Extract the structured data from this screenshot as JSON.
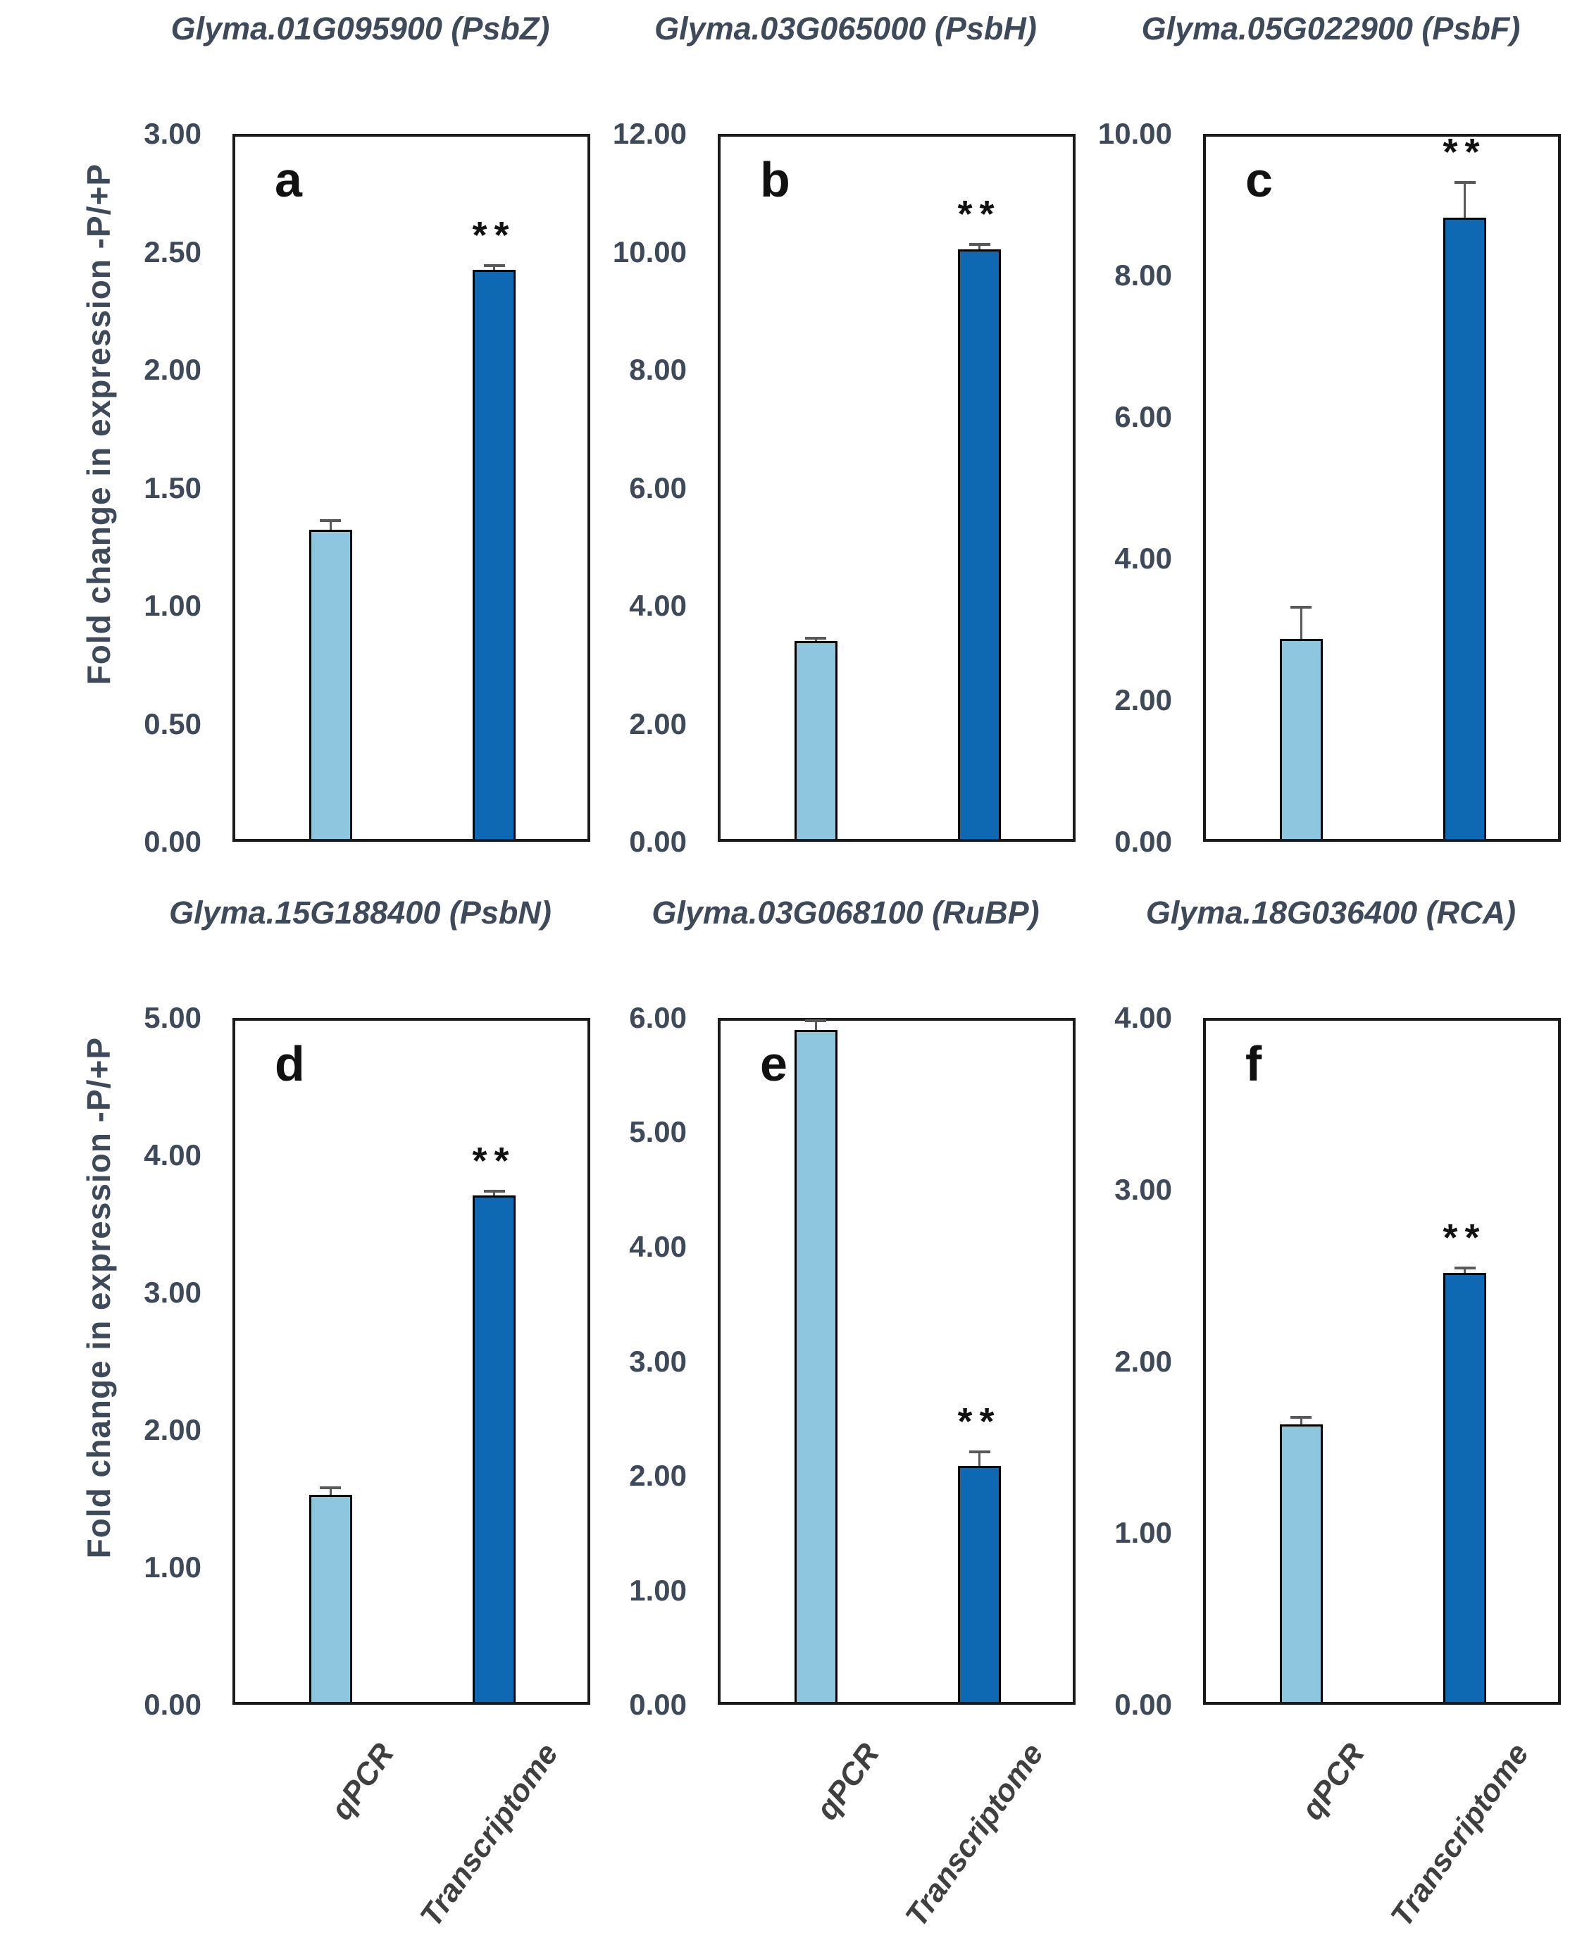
{
  "figure": {
    "y_axis_title": "Fold change in expression -P/+P",
    "significance_marker": "**",
    "x_categories": [
      "qPCR",
      "Transcriptome"
    ]
  },
  "colors": {
    "qpcr_bar": "#8EC6E0",
    "transcriptome_bar": "#0E69B2",
    "bar_outline": "#000000",
    "error_bar": "#595959",
    "axis_frame": "#1a1a1a",
    "tick_label": "#3E4959",
    "chart_title": "#3E4959",
    "panel_letter": "#111111",
    "x_tick_label": "#3F3F3F"
  },
  "chart_data": [
    {
      "panel_label": "a",
      "title": "Glyma.01G095900 (PsbZ)",
      "type": "bar",
      "categories": [
        "qPCR",
        "Transcriptome"
      ],
      "values": [
        1.32,
        2.43
      ],
      "errors": [
        0.04,
        0.02
      ],
      "significance": [
        null,
        "**"
      ],
      "ylim": [
        0,
        3
      ],
      "ytick_step": 0.5,
      "ylabel": "Fold change in expression -P/+P",
      "x_axis_labels_shown": false
    },
    {
      "panel_label": "b",
      "title": "Glyma.03G065000 (PsbH)",
      "type": "bar",
      "categories": [
        "qPCR",
        "Transcriptome"
      ],
      "values": [
        3.38,
        10.08
      ],
      "errors": [
        0.05,
        0.08
      ],
      "significance": [
        null,
        "**"
      ],
      "ylim": [
        0,
        12
      ],
      "ytick_step": 2,
      "ylabel": "",
      "x_axis_labels_shown": false
    },
    {
      "panel_label": "c",
      "title": "Glyma.05G022900 (PsbF)",
      "type": "bar",
      "categories": [
        "qPCR",
        "Transcriptome"
      ],
      "values": [
        2.85,
        8.85
      ],
      "errors": [
        0.45,
        0.5
      ],
      "significance": [
        null,
        "**"
      ],
      "ylim": [
        0,
        10
      ],
      "ytick_step": 2,
      "ylabel": "",
      "x_axis_labels_shown": false
    },
    {
      "panel_label": "d",
      "title": "Glyma.15G188400 (PsbN)",
      "type": "bar",
      "categories": [
        "qPCR",
        "Transcriptome"
      ],
      "values": [
        1.52,
        3.72
      ],
      "errors": [
        0.05,
        0.03
      ],
      "significance": [
        null,
        "**"
      ],
      "ylim": [
        0,
        5
      ],
      "ytick_step": 1,
      "ylabel": "Fold change in expression -P/+P",
      "x_axis_labels_shown": true
    },
    {
      "panel_label": "e",
      "title": "Glyma.03G068100 (RuBP)",
      "type": "bar",
      "categories": [
        "qPCR",
        "Transcriptome"
      ],
      "values": [
        5.92,
        2.08
      ],
      "errors": [
        0.08,
        0.12
      ],
      "significance": [
        null,
        "**"
      ],
      "ylim": [
        0,
        6
      ],
      "ytick_step": 1,
      "ylabel": "",
      "x_axis_labels_shown": true
    },
    {
      "panel_label": "f",
      "title": "Glyma.18G036400 (RCA)",
      "type": "bar",
      "categories": [
        "qPCR",
        "Transcriptome"
      ],
      "values": [
        1.63,
        2.52
      ],
      "errors": [
        0.04,
        0.03
      ],
      "significance": [
        null,
        "**"
      ],
      "ylim": [
        0,
        4
      ],
      "ytick_step": 1,
      "ylabel": "",
      "x_axis_labels_shown": true
    }
  ]
}
